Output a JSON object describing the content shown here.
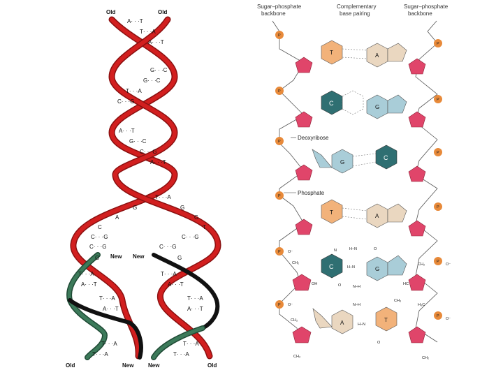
{
  "left_panel": {
    "top_labels": [
      "Old",
      "Old"
    ],
    "mid_labels": [
      "New",
      "New"
    ],
    "bottom_labels": [
      "Old",
      "New",
      "New",
      "Old"
    ],
    "base_rows": [
      "A· · ·T",
      "T· · ·A",
      "A· · ·T",
      "G· · ·C",
      "G· · ·C",
      "T· · ·A",
      "C· · ·G",
      "A· · ·T",
      "G· · ·C",
      "C· · ·G",
      "A· · ·T",
      "T· · ·A"
    ],
    "single_bases_left": [
      "G",
      "A",
      "C",
      "C· · ·G",
      "C· · ·G"
    ],
    "single_bases_right": [
      "G",
      "C",
      "T",
      "C· · ·G",
      "C· · ·G"
    ],
    "lower_left_rows": [
      "T· · ·A",
      "A· · ·T",
      "T· · ·A",
      "A· · ·T",
      "T· · ·A",
      "T· · ·A"
    ],
    "lower_right_rows": [
      "T· · ·A",
      "A· · ·T",
      "T· · ·A",
      "A· · ·T",
      "T· · ·A",
      "T· · ·A"
    ],
    "lower_left_first": "G",
    "lower_right_first": "G"
  },
  "right_panel": {
    "header_left": [
      "Sugar–phosphate",
      "backbone"
    ],
    "header_center": [
      "Complementary",
      "base pairing"
    ],
    "header_right": [
      "Sugar–phosphate",
      "backbone"
    ],
    "phosphate_symbol": "P",
    "callout_deoxyribose": "Deoxyribose",
    "callout_phosphate": "Phosphate",
    "pairs": [
      {
        "left": "T",
        "right": "A"
      },
      {
        "left": "C",
        "right": "G"
      },
      {
        "left": "G",
        "right": "C"
      },
      {
        "left": "T",
        "right": "A"
      },
      {
        "left": "C",
        "right": "G"
      },
      {
        "left": "A",
        "right": "T"
      }
    ],
    "chem_labels": {
      "o_minus": "O⁻",
      "ch2": "CH₂",
      "oh": "OH",
      "h": "H",
      "n": "N",
      "o": "O",
      "hc": "HC",
      "ch3": "CH₃",
      "h3c": "H₃C",
      "hn": "H–N",
      "nh": "N–H"
    }
  },
  "colors": {
    "red_strand": "#d21f1f",
    "red_dark": "#8a1010",
    "green_strand": "#3c7a5a",
    "black_strand": "#111111",
    "phosphate": "#e88a3a",
    "sugar": "#e0456a",
    "base_T": "#f2b27a",
    "base_A": "#ead7c0",
    "base_C": "#2f6f72",
    "base_G": "#a9cdd8"
  }
}
